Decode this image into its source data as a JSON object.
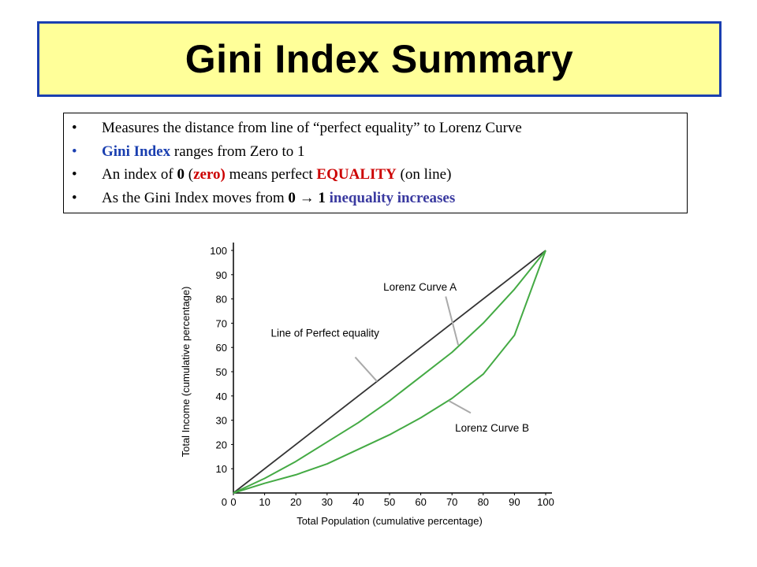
{
  "title": "Gini Index Summary",
  "bullets": [
    {
      "parts": [
        {
          "text": "Measures the distance from line of “perfect equality” to Lorenz Curve",
          "style": "plain"
        }
      ]
    },
    {
      "parts": [
        {
          "text": "Gini Index",
          "style": "blue"
        },
        {
          "text": " ranges from Zero to 1",
          "style": "plain"
        }
      ]
    },
    {
      "parts": [
        {
          "text": "An index of ",
          "style": "plain"
        },
        {
          "text": "0",
          "style": "bold"
        },
        {
          "text": " (",
          "style": "plain"
        },
        {
          "text": "zero)",
          "style": "red"
        },
        {
          "text": " means perfect ",
          "style": "plain"
        },
        {
          "text": "EQUALITY",
          "style": "red"
        },
        {
          "text": "  (on line)",
          "style": "plain"
        }
      ]
    },
    {
      "parts": [
        {
          "text": "As the Gini Index moves from ",
          "style": "plain"
        },
        {
          "text": "0",
          "style": "bold"
        },
        {
          "text": " → ",
          "style": "bold"
        },
        {
          "text": "1",
          "style": "bold"
        },
        {
          "text": " inequality increases",
          "style": "purple"
        }
      ]
    }
  ],
  "colors": {
    "title_bg": "#ffff99",
    "title_border": "#1a3fb0",
    "equality_line": "#333333",
    "lorenz": "#44aa44",
    "pointer": "#aaaaaa"
  },
  "chart_data": {
    "type": "line",
    "xlabel": "Total Population (cumulative percentage)",
    "ylabel": "Total Income (cumulative percentage)",
    "xlim": [
      0,
      100
    ],
    "ylim": [
      0,
      100
    ],
    "xticks": [
      0,
      10,
      20,
      30,
      40,
      50,
      60,
      70,
      80,
      90,
      100
    ],
    "yticks": [
      10,
      20,
      30,
      40,
      50,
      60,
      70,
      80,
      90,
      100
    ],
    "grid": false,
    "series": [
      {
        "name": "Line of Perfect equality",
        "x": [
          0,
          100
        ],
        "y": [
          0,
          100
        ]
      },
      {
        "name": "Lorenz Curve A",
        "x": [
          0,
          10,
          20,
          30,
          40,
          50,
          60,
          70,
          80,
          90,
          100
        ],
        "y": [
          0,
          6,
          13,
          21,
          29,
          38,
          48,
          58,
          70,
          84,
          100
        ]
      },
      {
        "name": "Lorenz Curve B",
        "x": [
          0,
          10,
          20,
          30,
          40,
          50,
          60,
          70,
          80,
          90,
          100
        ],
        "y": [
          0,
          4,
          7.5,
          12,
          18,
          24,
          31,
          39,
          49,
          65,
          100
        ]
      }
    ],
    "annotations": [
      {
        "text": "Lorenz Curve A",
        "label": [
          48,
          85
        ],
        "from": [
          68,
          81
        ],
        "to": [
          72,
          61
        ]
      },
      {
        "text": "Line of Perfect equality",
        "label": [
          12,
          66
        ],
        "from": [
          39,
          56
        ],
        "to": [
          46,
          46
        ]
      },
      {
        "text": "Lorenz Curve B",
        "label": [
          71,
          27
        ],
        "from": [
          69,
          38
        ],
        "to": [
          76,
          33
        ]
      }
    ]
  }
}
